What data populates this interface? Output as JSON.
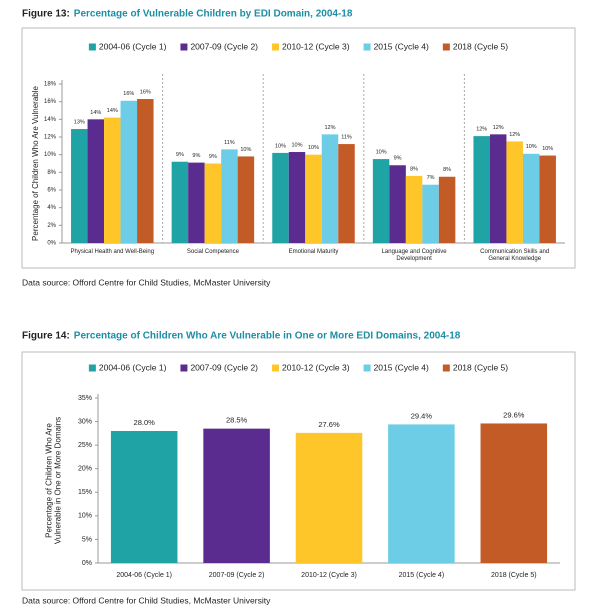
{
  "chart_data": [
    {
      "type": "grouped_bar",
      "figure_label": "Figure 13:",
      "title": "Percentage of Vulnerable Children by EDI Domain, 2004-18",
      "y_label": "Percentage of Children Who Are Vulnerable",
      "source": "Data source: Offord Centre for Child Studies, McMaster University",
      "categories": [
        "Physical Health and Well-Being",
        "Social Competence",
        "Emotional Maturity",
        "Language and Cognitive Development",
        "Communication Skills and General Knowledge"
      ],
      "series": [
        {
          "name": "2004-06 (Cycle 1)",
          "color": "#1fa3a4",
          "values": [
            12.9,
            9.2,
            10.2,
            9.5,
            12.1
          ],
          "value_labels": [
            "13%",
            "9%",
            "10%",
            "10%",
            "12%"
          ]
        },
        {
          "name": "2007-09 (Cycle 2)",
          "color": "#5b2c8f",
          "values": [
            14.0,
            9.1,
            10.3,
            8.8,
            12.3
          ],
          "value_labels": [
            "14%",
            "9%",
            "10%",
            "9%",
            "12%"
          ]
        },
        {
          "name": "2010-12 (Cycle 3)",
          "color": "#ffc629",
          "values": [
            14.2,
            9.0,
            10.0,
            7.6,
            11.5
          ],
          "value_labels": [
            "14%",
            "9%",
            "10%",
            "8%",
            "12%"
          ]
        },
        {
          "name": "2015 (Cycle 4)",
          "color": "#6dcde6",
          "values": [
            16.1,
            10.6,
            12.3,
            6.6,
            10.1
          ],
          "value_labels": [
            "16%",
            "11%",
            "12%",
            "7%",
            "10%"
          ]
        },
        {
          "name": "2018 (Cycle 5)",
          "color": "#c35b27",
          "values": [
            16.3,
            9.8,
            11.2,
            7.5,
            9.9
          ],
          "value_labels": [
            "16%",
            "10%",
            "11%",
            "8%",
            "10%"
          ]
        }
      ],
      "ylim": [
        0,
        18
      ],
      "yticks": [
        {
          "value": 0,
          "label": "0%"
        },
        {
          "value": 2,
          "label": "2%"
        },
        {
          "value": 4,
          "label": "4%"
        },
        {
          "value": 6,
          "label": "6%"
        },
        {
          "value": 8,
          "label": "8%"
        },
        {
          "value": 10,
          "label": "10%"
        },
        {
          "value": 12,
          "label": "12%"
        },
        {
          "value": 14,
          "label": "14%"
        },
        {
          "value": 16,
          "label": "16%"
        },
        {
          "value": 18,
          "label": "18%"
        }
      ],
      "grid": false,
      "legend": "top"
    },
    {
      "type": "bar",
      "figure_label": "Figure 14:",
      "title": "Percentage of Children Who Are Vulnerable in One or More EDI Domains, 2004-18",
      "y_label": "Percentage of Children Who Are Vulnerable in One or More Domains",
      "source": "Data source: Offord Centre for Child Studies, McMaster University",
      "categories": [
        "2004-06 (Cycle 1)",
        "2007-09 (Cycle 2)",
        "2010-12 (Cycle 3)",
        "2015 (Cycle 4)",
        "2018 (Cycle 5)"
      ],
      "values": [
        28.0,
        28.5,
        27.6,
        29.4,
        29.6
      ],
      "value_labels": [
        "28.0%",
        "28.5%",
        "27.6%",
        "29.4%",
        "29.6%"
      ],
      "colors": [
        "#1fa3a4",
        "#5b2c8f",
        "#ffc629",
        "#6dcde6",
        "#c35b27"
      ],
      "ylim": [
        0,
        35
      ],
      "yticks": [
        {
          "value": 0,
          "label": "0%"
        },
        {
          "value": 5,
          "label": "5%"
        },
        {
          "value": 10,
          "label": "10%"
        },
        {
          "value": 15,
          "label": "15%"
        },
        {
          "value": 20,
          "label": "20%"
        },
        {
          "value": 25,
          "label": "25%"
        },
        {
          "value": 30,
          "label": "30%"
        },
        {
          "value": 35,
          "label": "35%"
        }
      ],
      "grid": false,
      "legend": "top"
    }
  ]
}
